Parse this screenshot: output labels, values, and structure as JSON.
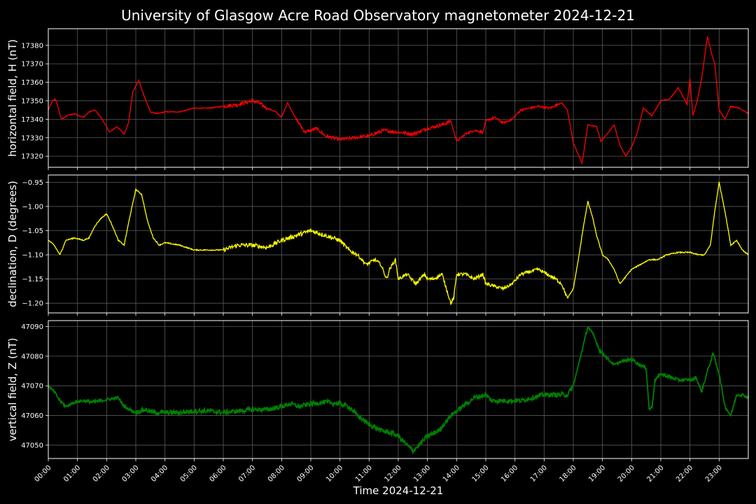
{
  "title": "University of Glasgow Acre Road Observatory magnetometer 2024-12-21",
  "chart_data": [
    {
      "type": "line",
      "ylabel": "horizontal field, H (nT)",
      "color": "#ff0000",
      "ylim": [
        17314,
        17389
      ],
      "yticks": [
        17320,
        17330,
        17340,
        17350,
        17360,
        17370,
        17380
      ],
      "ytick_labels": [
        "17320",
        "17330",
        "17340",
        "17350",
        "17360",
        "17370",
        "17380"
      ],
      "grid": true,
      "x_hours": [
        0,
        0.15,
        0.25,
        0.45,
        0.65,
        0.9,
        1.2,
        1.4,
        1.6,
        1.85,
        2.1,
        2.35,
        2.6,
        2.75,
        2.9,
        3.1,
        3.3,
        3.5,
        3.75,
        4.0,
        4.5,
        5.0,
        5.5,
        6.0,
        6.5,
        7.0,
        7.2,
        7.5,
        7.8,
        8.0,
        8.2,
        8.5,
        8.8,
        9.2,
        9.5,
        10.0,
        10.5,
        11.0,
        11.5,
        12.0,
        12.5,
        13.0,
        13.5,
        13.8,
        14.0,
        14.3,
        14.6,
        14.9,
        15.0,
        15.3,
        15.6,
        15.9,
        16.2,
        16.5,
        16.8,
        17.2,
        17.6,
        17.8,
        18.0,
        18.2,
        18.3,
        18.5,
        18.8,
        18.95,
        19.2,
        19.4,
        19.6,
        19.8,
        20.0,
        20.2,
        20.4,
        20.7,
        21.0,
        21.3,
        21.6,
        21.9,
        22.0,
        22.1,
        22.25,
        22.4,
        22.6,
        22.75,
        22.85,
        23.0,
        23.2,
        23.4,
        23.7,
        24.0
      ],
      "values": [
        17345,
        17350,
        17351,
        17340,
        17342,
        17343,
        17341,
        17344,
        17345,
        17340,
        17333,
        17336,
        17332,
        17338,
        17355,
        17361,
        17352,
        17344,
        17343,
        17344,
        17344,
        17346,
        17346,
        17347,
        17348,
        17350,
        17349,
        17346,
        17344,
        17341,
        17349,
        17340,
        17333,
        17335,
        17331,
        17329,
        17330,
        17331,
        17334,
        17333,
        17332,
        17335,
        17337,
        17339,
        17328,
        17332,
        17334,
        17333,
        17339,
        17341,
        17338,
        17340,
        17345,
        17346,
        17347,
        17346,
        17349,
        17345,
        17327,
        17320,
        17316,
        17337,
        17336,
        17328,
        17333,
        17337,
        17326,
        17320,
        17325,
        17333,
        17346,
        17342,
        17350,
        17351,
        17357,
        17348,
        17362,
        17342,
        17350,
        17362,
        17385,
        17375,
        17370,
        17345,
        17340,
        17347,
        17346,
        17343
      ]
    },
    {
      "type": "line",
      "ylabel": "declination, D (degrees)",
      "color": "#ffff00",
      "ylim": [
        -1.22,
        -0.935
      ],
      "yticks": [
        -1.2,
        -1.15,
        -1.1,
        -1.05,
        -1.0,
        -0.95
      ],
      "ytick_labels": [
        "−1.20",
        "−1.15",
        "−1.10",
        "−1.05",
        "−1.00",
        "−0.95"
      ],
      "grid": true,
      "x_hours": [
        0,
        0.2,
        0.4,
        0.6,
        0.9,
        1.2,
        1.4,
        1.6,
        1.8,
        2.0,
        2.2,
        2.4,
        2.6,
        2.8,
        3.0,
        3.2,
        3.4,
        3.6,
        3.8,
        4.0,
        4.5,
        5.0,
        5.5,
        6.0,
        6.5,
        7.0,
        7.5,
        8.0,
        8.5,
        9.0,
        9.5,
        10.0,
        10.3,
        10.6,
        10.9,
        11.2,
        11.4,
        11.6,
        11.7,
        11.9,
        12.0,
        12.3,
        12.6,
        12.9,
        13.0,
        13.2,
        13.5,
        13.8,
        13.9,
        14.0,
        14.3,
        14.6,
        14.9,
        15.0,
        15.3,
        15.6,
        15.9,
        16.2,
        16.5,
        16.8,
        17.1,
        17.4,
        17.6,
        17.8,
        18.0,
        18.2,
        18.35,
        18.5,
        18.65,
        18.8,
        19.0,
        19.2,
        19.4,
        19.6,
        19.8,
        20.0,
        20.3,
        20.6,
        20.9,
        21.2,
        21.6,
        22.0,
        22.3,
        22.5,
        22.7,
        22.85,
        23.0,
        23.2,
        23.4,
        23.6,
        23.8,
        24.0
      ],
      "values": [
        -1.07,
        -1.08,
        -1.1,
        -1.07,
        -1.065,
        -1.07,
        -1.065,
        -1.04,
        -1.025,
        -1.015,
        -1.04,
        -1.07,
        -1.08,
        -1.02,
        -0.965,
        -0.975,
        -1.03,
        -1.065,
        -1.08,
        -1.075,
        -1.08,
        -1.09,
        -1.09,
        -1.09,
        -1.08,
        -1.08,
        -1.085,
        -1.07,
        -1.06,
        -1.05,
        -1.06,
        -1.07,
        -1.09,
        -1.1,
        -1.12,
        -1.11,
        -1.12,
        -1.15,
        -1.13,
        -1.11,
        -1.15,
        -1.14,
        -1.16,
        -1.14,
        -1.15,
        -1.15,
        -1.14,
        -1.2,
        -1.19,
        -1.14,
        -1.14,
        -1.15,
        -1.14,
        -1.16,
        -1.165,
        -1.17,
        -1.16,
        -1.14,
        -1.135,
        -1.13,
        -1.14,
        -1.15,
        -1.16,
        -1.19,
        -1.17,
        -1.1,
        -1.04,
        -0.99,
        -1.02,
        -1.06,
        -1.1,
        -1.11,
        -1.13,
        -1.16,
        -1.145,
        -1.13,
        -1.12,
        -1.11,
        -1.11,
        -1.1,
        -1.095,
        -1.095,
        -1.1,
        -1.1,
        -1.08,
        -1.01,
        -0.95,
        -1.01,
        -1.08,
        -1.07,
        -1.09,
        -1.1
      ]
    },
    {
      "type": "line",
      "ylabel": "vertical field, Z (nT)",
      "color": "#008000",
      "ylim": [
        47045.5,
        47092
      ],
      "yticks": [
        47050,
        47060,
        47070,
        47080,
        47090
      ],
      "ytick_labels": [
        "47050",
        "47060",
        "47070",
        "47080",
        "47090"
      ],
      "grid": true,
      "x_hours": [
        0,
        0.2,
        0.4,
        0.6,
        0.9,
        1.2,
        1.5,
        1.8,
        2.1,
        2.4,
        2.6,
        2.8,
        3.0,
        3.3,
        3.6,
        4.0,
        4.5,
        5.0,
        5.5,
        6.0,
        6.5,
        7.0,
        7.5,
        8.0,
        8.3,
        8.6,
        9.0,
        9.5,
        10.0,
        10.3,
        10.6,
        11.0,
        11.4,
        11.8,
        12.0,
        12.3,
        12.5,
        12.7,
        13.0,
        13.4,
        13.8,
        14.2,
        14.6,
        15.0,
        15.2,
        15.4,
        15.8,
        16.2,
        16.6,
        17.0,
        17.4,
        17.8,
        18.0,
        18.2,
        18.5,
        18.7,
        18.9,
        19.2,
        19.4,
        19.6,
        20.0,
        20.3,
        20.5,
        20.6,
        20.7,
        20.8,
        21.0,
        21.3,
        21.6,
        21.9,
        22.1,
        22.2,
        22.4,
        22.6,
        22.8,
        23.0,
        23.2,
        23.4,
        23.6,
        23.8,
        24.0
      ],
      "values": [
        47070,
        47068,
        47065,
        47063,
        47064.5,
        47065,
        47064.5,
        47065,
        47065.5,
        47066,
        47063,
        47062,
        47061,
        47062,
        47061,
        47061,
        47061,
        47061.5,
        47061.5,
        47061,
        47061.5,
        47062,
        47062,
        47063,
        47064,
        47063,
        47064,
        47064.5,
        47064,
        47063,
        47060,
        47057,
        47055,
        47054,
        47053,
        47050,
        47048,
        47050,
        47053,
        47055,
        47060,
        47063,
        47066,
        47067,
        47065,
        47065,
        47065,
        47065,
        47066,
        47067,
        47067,
        47067,
        47070,
        47078,
        47090,
        47087,
        47082,
        47079,
        47077,
        47078,
        47079,
        47077,
        47076,
        47062,
        47063,
        47072,
        47074,
        47073,
        47072,
        47072,
        47072,
        47073,
        47068,
        47075,
        47081,
        47074,
        47063,
        47060,
        47067,
        47067,
        47066
      ]
    }
  ],
  "x_axis": {
    "xlabel": "Time 2024-12-21",
    "xlim": [
      0,
      24
    ],
    "tick_labels": [
      "00:00",
      "01:00",
      "02:00",
      "03:00",
      "04:00",
      "05:00",
      "06:00",
      "07:00",
      "08:00",
      "09:00",
      "10:00",
      "11:00",
      "12:00",
      "13:00",
      "14:00",
      "15:00",
      "16:00",
      "17:00",
      "18:00",
      "19:00",
      "20:00",
      "21:00",
      "22:00",
      "23:00"
    ]
  }
}
